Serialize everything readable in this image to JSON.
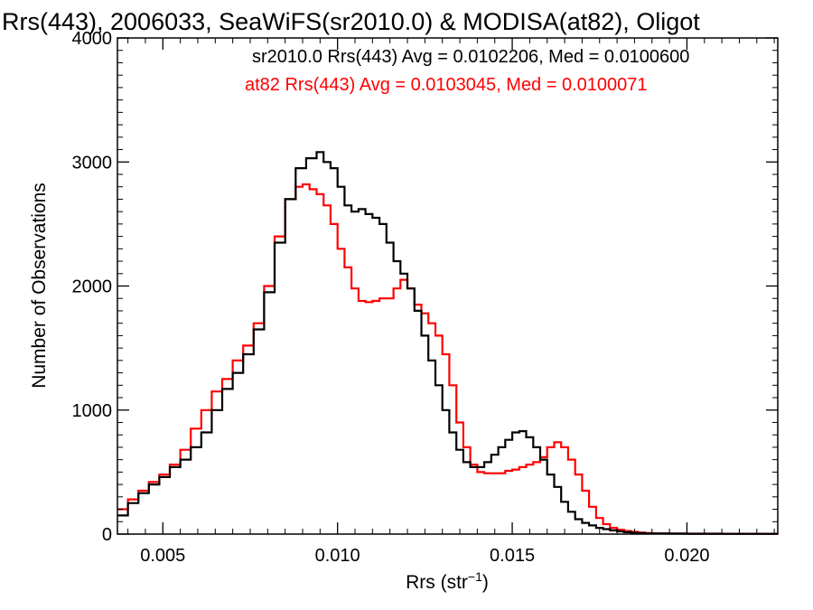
{
  "chart_data": {
    "type": "histogram",
    "title": "Rrs(443), 2006033, SeaWiFS(sr2010.0) & MODISA(at82), Oligot",
    "xlabel_main": "Rrs (str",
    "xlabel_sup": "−1",
    "xlabel_close": ")",
    "ylabel": "Number of Observations",
    "xlim": [
      0.0037,
      0.0226
    ],
    "ylim": [
      0,
      4000
    ],
    "x_ticks": [
      {
        "value": 0.005,
        "label": "0.005"
      },
      {
        "value": 0.01,
        "label": "0.010"
      },
      {
        "value": 0.015,
        "label": "0.015"
      },
      {
        "value": 0.02,
        "label": "0.020"
      }
    ],
    "y_ticks": [
      {
        "value": 0,
        "label": "0"
      },
      {
        "value": 1000,
        "label": "1000"
      },
      {
        "value": 2000,
        "label": "2000"
      },
      {
        "value": 3000,
        "label": "3000"
      },
      {
        "value": 4000,
        "label": "4000"
      }
    ],
    "annotations": [
      {
        "text": "sr2010.0 Rrs(443) Avg = 0.0102206, Med = 0.0100600",
        "color": "#000000"
      },
      {
        "text": "at82 Rrs(443) Avg = 0.0103045, Med = 0.0100071",
        "color": "#ff0000"
      }
    ],
    "series": [
      {
        "color": "#000000",
        "x": [
          0.0037,
          0.004,
          0.0043,
          0.0046,
          0.0049,
          0.0052,
          0.0055,
          0.0058,
          0.0061,
          0.0064,
          0.0067,
          0.007,
          0.0073,
          0.0076,
          0.0079,
          0.0082,
          0.0085,
          0.0088,
          0.0091,
          0.0094,
          0.0096,
          0.0098,
          0.01,
          0.0102,
          0.0104,
          0.0106,
          0.0108,
          0.011,
          0.0112,
          0.0114,
          0.0116,
          0.0118,
          0.012,
          0.0122,
          0.0124,
          0.0126,
          0.0128,
          0.013,
          0.0132,
          0.0134,
          0.0136,
          0.0138,
          0.014,
          0.0142,
          0.0144,
          0.0146,
          0.0148,
          0.015,
          0.0152,
          0.0154,
          0.0156,
          0.0158,
          0.016,
          0.0162,
          0.0164,
          0.0166,
          0.0168,
          0.017,
          0.0172,
          0.0174,
          0.0176,
          0.0178,
          0.018,
          0.0182,
          0.0184,
          0.0186,
          0.0188,
          0.019,
          0.0195,
          0.02,
          0.021,
          0.0226
        ],
        "values": [
          150,
          250,
          330,
          400,
          460,
          540,
          600,
          700,
          820,
          1000,
          1170,
          1300,
          1450,
          1650,
          1950,
          2350,
          2700,
          2950,
          3030,
          3080,
          3000,
          2950,
          2800,
          2650,
          2600,
          2620,
          2580,
          2550,
          2500,
          2350,
          2200,
          2100,
          1980,
          1800,
          1600,
          1400,
          1200,
          1000,
          820,
          680,
          580,
          540,
          540,
          580,
          640,
          700,
          760,
          820,
          830,
          780,
          700,
          600,
          480,
          380,
          260,
          180,
          120,
          90,
          70,
          50,
          40,
          30,
          22,
          15,
          10,
          8,
          6,
          5,
          4,
          3,
          2,
          2
        ]
      },
      {
        "color": "#ff0000",
        "x": [
          0.0037,
          0.004,
          0.0043,
          0.0046,
          0.0049,
          0.0052,
          0.0055,
          0.0058,
          0.0061,
          0.0064,
          0.0067,
          0.007,
          0.0073,
          0.0076,
          0.0079,
          0.0082,
          0.0085,
          0.0088,
          0.009,
          0.0092,
          0.0094,
          0.0096,
          0.0098,
          0.01,
          0.0102,
          0.0104,
          0.0106,
          0.0108,
          0.011,
          0.0112,
          0.0114,
          0.0116,
          0.0118,
          0.012,
          0.0122,
          0.0124,
          0.0126,
          0.0128,
          0.013,
          0.0132,
          0.0134,
          0.0136,
          0.0138,
          0.014,
          0.0142,
          0.0144,
          0.0146,
          0.0148,
          0.015,
          0.0152,
          0.0154,
          0.0156,
          0.0158,
          0.016,
          0.0162,
          0.0164,
          0.0166,
          0.0168,
          0.017,
          0.0172,
          0.0174,
          0.0176,
          0.0178,
          0.018,
          0.0182,
          0.0184,
          0.0186,
          0.0188,
          0.019,
          0.0195,
          0.02,
          0.021,
          0.0226
        ],
        "values": [
          200,
          280,
          350,
          420,
          480,
          560,
          680,
          850,
          1000,
          1150,
          1250,
          1400,
          1520,
          1700,
          2000,
          2400,
          2700,
          2800,
          2820,
          2780,
          2740,
          2650,
          2500,
          2300,
          2150,
          1980,
          1880,
          1870,
          1880,
          1900,
          1900,
          1980,
          2050,
          1980,
          1850,
          1780,
          1700,
          1600,
          1450,
          1200,
          900,
          700,
          560,
          500,
          490,
          490,
          490,
          510,
          520,
          540,
          560,
          580,
          620,
          700,
          740,
          700,
          600,
          480,
          350,
          220,
          130,
          80,
          50,
          35,
          25,
          18,
          12,
          8,
          6,
          5,
          4,
          3,
          2
        ]
      }
    ]
  }
}
